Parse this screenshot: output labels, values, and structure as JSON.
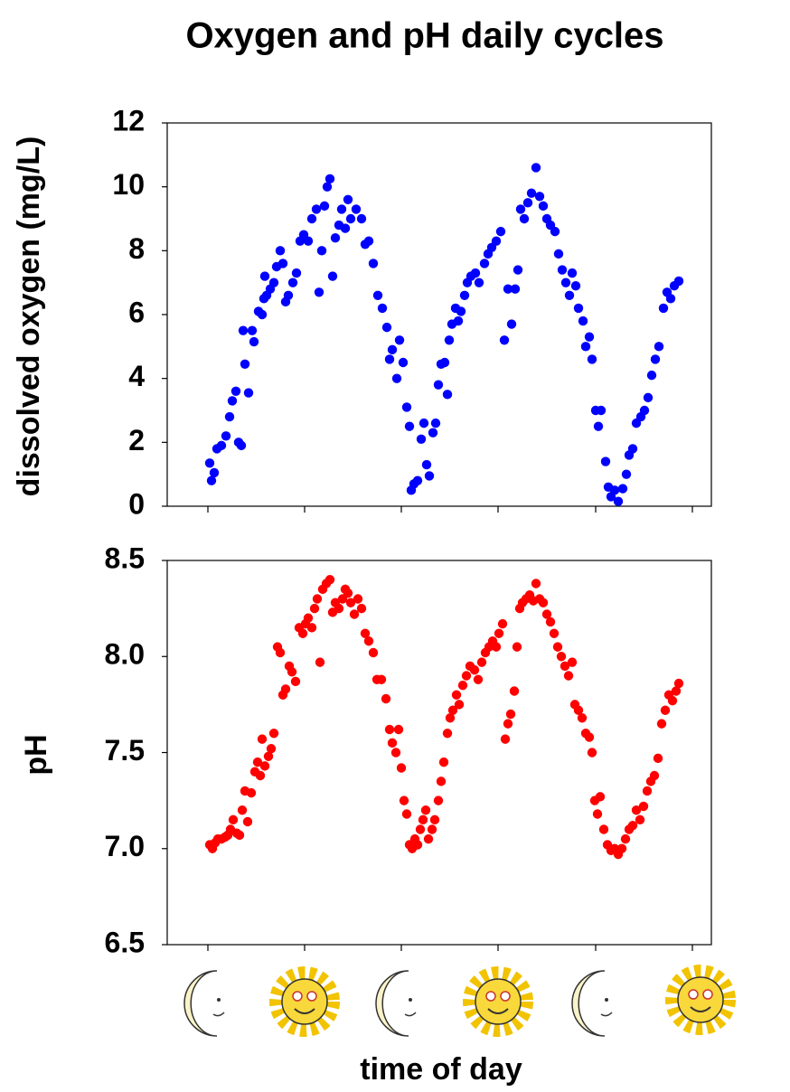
{
  "chart_data": [
    {
      "type": "scatter",
      "title": "Oxygen and pH daily cycles",
      "y_label": "dissolved oxygen (mg/L)",
      "color": "#0000ff",
      "xlim": [
        -45,
        557
      ],
      "xticks": [
        0,
        107,
        214,
        321,
        429,
        536
      ],
      "ylim": [
        0,
        12
      ],
      "yticks": [
        0,
        2,
        4,
        6,
        8,
        10,
        12
      ],
      "x": [
        2,
        4,
        7,
        10,
        15,
        20,
        24,
        27,
        31,
        34,
        37,
        41,
        45,
        39,
        49,
        51,
        56,
        60,
        62,
        65,
        63,
        69,
        73,
        76,
        80,
        83,
        86,
        89,
        94,
        98,
        102,
        106,
        111,
        115,
        120,
        123,
        126,
        129,
        132,
        135,
        138,
        141,
        145,
        148,
        152,
        155,
        158,
        164,
        170,
        174,
        178,
        183,
        188,
        193,
        198,
        201,
        204,
        209,
        212,
        216,
        220,
        223,
        225,
        228,
        232,
        236,
        239,
        242,
        245,
        249,
        252,
        255,
        258,
        262,
        265,
        267,
        270,
        274,
        277,
        280,
        284,
        287,
        291,
        296,
        300,
        306,
        310,
        314,
        319,
        324,
        328,
        332,
        336,
        340,
        343,
        346,
        350,
        354,
        358,
        363,
        367,
        371,
        375,
        379,
        384,
        388,
        392,
        396,
        400,
        403,
        407,
        410,
        415,
        418,
        422,
        425,
        429,
        432,
        435,
        440,
        443,
        446,
        450,
        454,
        459,
        463,
        466,
        470,
        474,
        479,
        483,
        487,
        491,
        495,
        499,
        504,
        508,
        512,
        516,
        521
      ],
      "values": [
        1.35,
        0.8,
        1.05,
        1.8,
        1.9,
        2.2,
        2.8,
        3.3,
        3.6,
        2.0,
        1.9,
        4.45,
        3.55,
        5.5,
        5.5,
        5.15,
        6.1,
        6.0,
        6.5,
        6.6,
        7.2,
        6.8,
        7.0,
        7.5,
        8.0,
        7.6,
        6.4,
        6.6,
        7.0,
        7.3,
        8.3,
        8.5,
        8.3,
        9.0,
        9.3,
        6.7,
        8.0,
        9.4,
        10.0,
        10.25,
        7.2,
        8.4,
        8.8,
        9.3,
        8.7,
        9.6,
        9.0,
        9.3,
        9.0,
        8.2,
        8.3,
        7.6,
        6.6,
        6.2,
        5.6,
        4.6,
        4.9,
        4.0,
        5.2,
        4.5,
        3.1,
        2.5,
        0.5,
        0.7,
        0.8,
        2.1,
        2.6,
        1.3,
        0.95,
        2.3,
        2.6,
        3.8,
        4.45,
        4.5,
        3.5,
        5.2,
        5.7,
        6.2,
        5.8,
        6.1,
        6.6,
        7.0,
        7.2,
        7.3,
        7.0,
        7.6,
        7.9,
        8.1,
        8.3,
        8.6,
        5.2,
        6.8,
        5.7,
        6.8,
        7.4,
        9.3,
        9.0,
        9.5,
        9.8,
        10.6,
        9.7,
        9.4,
        9.0,
        8.8,
        8.6,
        7.9,
        7.4,
        7.0,
        6.6,
        7.3,
        6.9,
        6.2,
        5.8,
        5.0,
        5.3,
        4.6,
        3.0,
        2.5,
        3.0,
        1.4,
        0.6,
        0.3,
        0.5,
        0.15,
        0.55,
        1.0,
        1.6,
        1.8,
        2.6,
        2.8,
        3.0,
        3.4,
        4.1,
        4.6,
        5.0,
        6.2,
        6.7,
        6.5,
        6.9,
        7.05
      ]
    },
    {
      "type": "scatter",
      "y_label": "pH",
      "x_label": "time of day",
      "color": "#ff0000",
      "xlim": [
        -45,
        557
      ],
      "xticks": [
        0,
        107,
        214,
        321,
        429,
        536
      ],
      "ylim": [
        6.5,
        8.5
      ],
      "yticks": [
        6.5,
        {
          "value": 7,
          "label": "7.0"
        },
        7.5,
        {
          "value": 8,
          "label": "8.0"
        },
        8.5
      ],
      "x": [
        2,
        5,
        8,
        11,
        15,
        19,
        22,
        25,
        28,
        32,
        35,
        38,
        41,
        44,
        48,
        52,
        55,
        58,
        60,
        63,
        67,
        70,
        73,
        77,
        80,
        83,
        86,
        90,
        93,
        97,
        101,
        105,
        108,
        111,
        115,
        118,
        121,
        124,
        127,
        131,
        135,
        138,
        141,
        145,
        149,
        152,
        155,
        158,
        162,
        166,
        170,
        174,
        178,
        183,
        187,
        192,
        197,
        201,
        204,
        208,
        211,
        214,
        217,
        220,
        223,
        226,
        229,
        232,
        235,
        238,
        241,
        244,
        248,
        251,
        255,
        258,
        261,
        265,
        268,
        271,
        275,
        278,
        282,
        286,
        290,
        295,
        299,
        303,
        307,
        311,
        315,
        319,
        322,
        326,
        329,
        332,
        335,
        339,
        342,
        345,
        348,
        352,
        356,
        360,
        363,
        367,
        371,
        375,
        379,
        383,
        387,
        391,
        395,
        399,
        403,
        406,
        410,
        414,
        418,
        422,
        425,
        428,
        431,
        434,
        438,
        442,
        446,
        450,
        454,
        458,
        462,
        466,
        470,
        474,
        478,
        482,
        486,
        490,
        494,
        498,
        502,
        506,
        510,
        514,
        518,
        521
      ],
      "values": [
        7.02,
        7.0,
        7.03,
        7.05,
        7.05,
        7.06,
        7.07,
        7.1,
        7.15,
        7.08,
        7.07,
        7.2,
        7.3,
        7.14,
        7.29,
        7.4,
        7.45,
        7.38,
        7.57,
        7.43,
        7.48,
        7.52,
        7.6,
        8.05,
        8.02,
        7.8,
        7.83,
        7.95,
        7.92,
        7.87,
        8.15,
        8.12,
        8.17,
        8.2,
        8.15,
        8.25,
        8.3,
        7.97,
        8.35,
        8.38,
        8.4,
        8.23,
        8.28,
        8.25,
        8.3,
        8.35,
        8.33,
        8.28,
        8.22,
        8.3,
        8.25,
        8.12,
        8.08,
        8.02,
        7.88,
        7.88,
        7.78,
        7.62,
        7.55,
        7.5,
        7.62,
        7.42,
        7.25,
        7.18,
        7.02,
        7.0,
        7.05,
        7.02,
        7.1,
        7.15,
        7.2,
        7.05,
        7.1,
        7.15,
        7.25,
        7.35,
        7.45,
        7.6,
        7.68,
        7.72,
        7.8,
        7.75,
        7.85,
        7.9,
        7.95,
        7.93,
        7.88,
        7.97,
        8.02,
        8.05,
        8.08,
        8.05,
        8.12,
        8.17,
        7.57,
        7.65,
        7.7,
        7.82,
        8.05,
        8.25,
        8.28,
        8.3,
        8.32,
        8.29,
        8.38,
        8.3,
        8.28,
        8.22,
        8.18,
        8.12,
        8.05,
        8.0,
        7.95,
        7.9,
        7.97,
        7.75,
        7.72,
        7.68,
        7.6,
        7.58,
        7.5,
        7.25,
        7.18,
        7.27,
        7.1,
        7.02,
        6.99,
        7.0,
        6.97,
        7.0,
        7.05,
        7.1,
        7.12,
        7.2,
        7.15,
        7.22,
        7.3,
        7.35,
        7.38,
        7.47,
        7.65,
        7.72,
        7.8,
        7.77,
        7.82,
        7.86
      ]
    }
  ]
}
